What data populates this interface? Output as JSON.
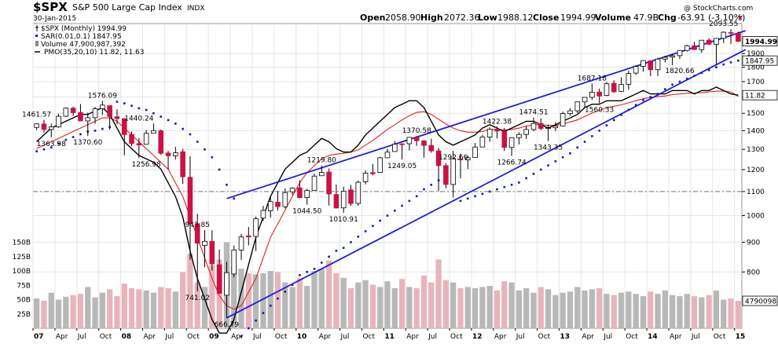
{
  "header": {
    "symbol": "$SPX",
    "name": "S&P 500 Large Cap Index",
    "exchange": "INDX",
    "date": "30-Jan-2015",
    "watermark": "@ StockCharts.com",
    "open_label": "Open",
    "open_value": "2058.90",
    "high_label": "High",
    "high_value": "2072.36",
    "low_label": "Low",
    "low_value": "1988.12",
    "close_label": "Close",
    "close_value": "1994.99",
    "volume_label": "Volume",
    "volume_value": "47.9B",
    "chg_label": "Chg",
    "chg_value": "-63.91 (-3.10%)"
  },
  "legend": [
    "$SPX (Monthly) 1994.99",
    "SAR(0.01,0.1) 1847.95",
    "Volume 47,900,987,392",
    "PMO(35,20,10) 11.82, 11.63"
  ],
  "colors": {
    "up": "#ffffff",
    "down": "#cc1144",
    "wick": "#000000",
    "sar": "#1a1aaa",
    "trend": "#1f1fd6",
    "pmo": "#000000",
    "pmo_signal": "#dd2222",
    "vol_up": "#b8b8b8",
    "vol_down": "#e8b4bc",
    "grid": "#e6e6e6",
    "dash": "#777777"
  },
  "chart_data": {
    "type": "candlestick",
    "interval": "monthly",
    "price_axis_ticks": [
      800,
      900,
      1000,
      1100,
      1200,
      1300,
      1400,
      1500,
      1600,
      1700,
      1800,
      1900
    ],
    "price_axis_labels": [
      "800",
      "900",
      "1000",
      "1100",
      "1200",
      "1300",
      "1400",
      "1500",
      "1600",
      "1700",
      "1800",
      "1900"
    ],
    "volume_axis_ticks": [
      25,
      50,
      75,
      100,
      125,
      150
    ],
    "volume_axis_labels": [
      "25B",
      "50B",
      "75B",
      "100B",
      "125B",
      "150B"
    ],
    "x_labels": [
      "07",
      "Apr",
      "Jul",
      "Oct",
      "08",
      "Apr",
      "Jul",
      "Oct",
      "09",
      "Apr",
      "Jul",
      "Oct",
      "10",
      "Apr",
      "Jul",
      "Oct",
      "11",
      "Apr",
      "Jul",
      "Oct",
      "12",
      "Apr",
      "Jul",
      "Oct",
      "13",
      "Apr",
      "Jul",
      "Oct",
      "14",
      "Apr",
      "Jul",
      "Oct",
      "15"
    ],
    "x_label_month_index": [
      0,
      3,
      6,
      9,
      12,
      15,
      18,
      21,
      24,
      27,
      30,
      33,
      36,
      39,
      42,
      45,
      48,
      51,
      54,
      57,
      60,
      63,
      66,
      69,
      72,
      75,
      78,
      81,
      84,
      87,
      90,
      93,
      96
    ],
    "reference_line": 1100,
    "last_close": 1994.99,
    "right_axis_tags": [
      {
        "label": "11.82",
        "value": 11.82,
        "series": "pmo"
      },
      {
        "label": "1994.99",
        "value": 1994.99,
        "series": "price"
      },
      {
        "label": "1847.95",
        "value": 1847.95,
        "series": "sar"
      },
      {
        "label": "4790098",
        "value": 47.9,
        "series": "volume"
      }
    ],
    "annotations": [
      {
        "text": "1461.57",
        "month": 0,
        "value": 1461.57,
        "pos": "above"
      },
      {
        "text": "1363.98",
        "month": 2,
        "value": 1363.98,
        "pos": "below"
      },
      {
        "text": "1370.60",
        "month": 7,
        "value": 1370.6,
        "pos": "below"
      },
      {
        "text": "1576.09",
        "month": 9,
        "value": 1576.09,
        "pos": "above"
      },
      {
        "text": "1440.24",
        "month": 14,
        "value": 1440.24,
        "pos": "above"
      },
      {
        "text": "1256.98",
        "month": 15,
        "value": 1256.98,
        "pos": "below"
      },
      {
        "text": "943.85",
        "month": 22,
        "value": 943.85,
        "pos": "above"
      },
      {
        "text": "741.02",
        "month": 22,
        "value": 741.02,
        "pos": "below"
      },
      {
        "text": "666.79",
        "month": 26,
        "value": 666.79,
        "pos": "below"
      },
      {
        "text": "1219.80",
        "month": 39,
        "value": 1219.8,
        "pos": "above"
      },
      {
        "text": "1044.50",
        "month": 37,
        "value": 1044.5,
        "pos": "below"
      },
      {
        "text": "1010.91",
        "month": 42,
        "value": 1010.91,
        "pos": "below"
      },
      {
        "text": "1370.58",
        "month": 52,
        "value": 1370.58,
        "pos": "above"
      },
      {
        "text": "1249.05",
        "month": 50,
        "value": 1249.05,
        "pos": "below"
      },
      {
        "text": "1292.66",
        "month": 57,
        "value": 1292.66,
        "pos": "below"
      },
      {
        "text": "1422.38",
        "month": 63,
        "value": 1422.38,
        "pos": "above"
      },
      {
        "text": "1266.74",
        "month": 65,
        "value": 1266.74,
        "pos": "below"
      },
      {
        "text": "1474.51",
        "month": 68,
        "value": 1474.51,
        "pos": "above"
      },
      {
        "text": "1343.35",
        "month": 70,
        "value": 1343.35,
        "pos": "below"
      },
      {
        "text": "1687.18",
        "month": 76,
        "value": 1687.18,
        "pos": "above"
      },
      {
        "text": "1560.33",
        "month": 77,
        "value": 1560.33,
        "pos": "below"
      },
      {
        "text": "1820.66",
        "month": 88,
        "value": 1820.66,
        "pos": "below"
      },
      {
        "text": "2093.55",
        "month": 94,
        "value": 2093.55,
        "pos": "above"
      }
    ],
    "trendlines": [
      {
        "from": {
          "month": 26,
          "value": 1070
        },
        "to": {
          "month": 97,
          "value": 2080
        }
      },
      {
        "from": {
          "month": 26,
          "value": 666.79
        },
        "to": {
          "month": 97,
          "value": 1930
        }
      }
    ],
    "ohlc": [
      [
        1418.03,
        1441.61,
        1403.97,
        1438.24
      ],
      [
        1437.9,
        1461.57,
        1389.42,
        1406.82
      ],
      [
        1406.8,
        1438.89,
        1363.98,
        1420.86
      ],
      [
        1420.83,
        1498.02,
        1416.37,
        1482.37
      ],
      [
        1482.37,
        1535.56,
        1476.7,
        1530.62
      ],
      [
        1530.62,
        1540.56,
        1484.18,
        1503.35
      ],
      [
        1504.66,
        1555.9,
        1454.25,
        1455.27
      ],
      [
        1455.18,
        1503.89,
        1370.6,
        1473.99
      ],
      [
        1473.96,
        1538.71,
        1439.76,
        1526.75
      ],
      [
        1527.29,
        1576.09,
        1489.56,
        1549.38
      ],
      [
        1545.79,
        1545.79,
        1406.1,
        1481.14
      ],
      [
        1479.63,
        1523.57,
        1435.65,
        1468.36
      ],
      [
        1467.97,
        1471.77,
        1270.05,
        1378.55
      ],
      [
        1378.6,
        1396.02,
        1316.75,
        1330.63
      ],
      [
        1330.45,
        1359.68,
        1256.98,
        1322.7
      ],
      [
        1326.41,
        1404.05,
        1324.35,
        1385.59
      ],
      [
        1385.97,
        1440.24,
        1384.71,
        1400.38
      ],
      [
        1399.62,
        1406.32,
        1272.0,
        1280.0
      ],
      [
        1281.37,
        1292.17,
        1200.44,
        1267.38
      ],
      [
        1267.38,
        1313.15,
        1248.64,
        1282.83
      ],
      [
        1287.83,
        1303.04,
        1133.5,
        1166.36
      ],
      [
        1164.17,
        1264.8,
        839.8,
        968.75
      ],
      [
        968.67,
        1007.51,
        741.02,
        896.24
      ],
      [
        888.61,
        943.85,
        815.69,
        903.25
      ],
      [
        902.99,
        943.85,
        804.3,
        825.88
      ],
      [
        823.09,
        875.01,
        734.52,
        735.09
      ],
      [
        729.57,
        832.98,
        666.79,
        797.87
      ],
      [
        793.59,
        888.7,
        783.32,
        872.81
      ],
      [
        872.74,
        930.17,
        839.42,
        919.14
      ],
      [
        923.26,
        956.23,
        888.86,
        919.32
      ],
      [
        920.82,
        996.68,
        869.32,
        987.48
      ],
      [
        990.22,
        1039.47,
        978.51,
        1020.62
      ],
      [
        1019.52,
        1080.15,
        991.97,
        1057.08
      ],
      [
        1054.91,
        1101.36,
        1019.95,
        1036.19
      ],
      [
        1036.18,
        1113.69,
        1029.38,
        1095.63
      ],
      [
        1098.89,
        1119.13,
        1085.89,
        1115.1
      ],
      [
        1116.56,
        1150.45,
        1071.59,
        1073.87
      ],
      [
        1073.89,
        1112.42,
        1044.5,
        1104.49
      ],
      [
        1105.36,
        1180.69,
        1105.36,
        1169.43
      ],
      [
        1171.23,
        1219.8,
        1170.69,
        1186.69
      ],
      [
        1188.58,
        1205.13,
        1040.78,
        1089.41
      ],
      [
        1087.3,
        1131.23,
        1028.33,
        1030.71
      ],
      [
        1031.1,
        1120.95,
        1010.91,
        1101.6
      ],
      [
        1107.53,
        1129.24,
        1039.7,
        1049.33
      ],
      [
        1049.72,
        1148.9,
        1039.7,
        1141.2
      ],
      [
        1143.49,
        1196.14,
        1131.87,
        1183.26
      ],
      [
        1185.71,
        1227.08,
        1173.0,
        1180.55
      ],
      [
        1186.6,
        1262.6,
        1186.6,
        1257.64
      ],
      [
        1257.62,
        1302.67,
        1257.62,
        1286.12
      ],
      [
        1289.14,
        1344.07,
        1289.14,
        1327.22
      ],
      [
        1328.64,
        1332.28,
        1249.05,
        1325.83
      ],
      [
        1329.48,
        1364.56,
        1294.7,
        1363.61
      ],
      [
        1365.21,
        1370.58,
        1318.51,
        1345.2
      ],
      [
        1345.2,
        1346.92,
        1258.07,
        1320.64
      ],
      [
        1320.64,
        1356.48,
        1282.86,
        1292.28
      ],
      [
        1292.59,
        1307.38,
        1101.54,
        1218.89
      ],
      [
        1219.12,
        1230.71,
        1114.22,
        1131.42
      ],
      [
        1131.21,
        1292.66,
        1074.77,
        1253.3
      ],
      [
        1251.0,
        1277.55,
        1158.66,
        1246.96
      ],
      [
        1246.91,
        1269.37,
        1202.37,
        1257.6
      ],
      [
        1258.86,
        1333.47,
        1258.86,
        1312.41
      ],
      [
        1312.45,
        1378.04,
        1312.45,
        1365.68
      ],
      [
        1365.2,
        1419.15,
        1340.03,
        1408.47
      ],
      [
        1408.47,
        1422.38,
        1357.38,
        1397.91
      ],
      [
        1397.86,
        1415.32,
        1291.98,
        1310.33
      ],
      [
        1309.87,
        1363.46,
        1266.74,
        1362.16
      ],
      [
        1362.33,
        1391.74,
        1325.41,
        1379.32
      ],
      [
        1379.32,
        1426.68,
        1354.65,
        1406.58
      ],
      [
        1406.54,
        1474.51,
        1396.56,
        1440.67
      ],
      [
        1440.9,
        1470.96,
        1403.28,
        1412.16
      ],
      [
        1412.2,
        1434.27,
        1343.35,
        1416.18
      ],
      [
        1416.18,
        1448.0,
        1398.11,
        1426.19
      ],
      [
        1426.19,
        1509.94,
        1426.19,
        1498.11
      ],
      [
        1498.11,
        1530.94,
        1485.01,
        1514.68
      ],
      [
        1514.68,
        1570.28,
        1501.48,
        1569.19
      ],
      [
        1569.18,
        1597.57,
        1536.03,
        1597.57
      ],
      [
        1597.55,
        1687.18,
        1581.28,
        1630.74
      ],
      [
        1631.71,
        1654.19,
        1560.33,
        1606.28
      ],
      [
        1609.78,
        1698.78,
        1604.57,
        1685.73
      ],
      [
        1689.42,
        1709.67,
        1627.47,
        1632.97
      ],
      [
        1635.95,
        1729.86,
        1633.41,
        1681.55
      ],
      [
        1682.41,
        1775.22,
        1646.47,
        1756.54
      ],
      [
        1758.7,
        1813.55,
        1746.2,
        1805.81
      ],
      [
        1806.55,
        1849.44,
        1767.99,
        1848.36
      ],
      [
        1845.86,
        1850.84,
        1737.92,
        1782.59
      ],
      [
        1782.68,
        1867.92,
        1737.92,
        1859.45
      ],
      [
        1859.16,
        1883.97,
        1834.44,
        1872.34
      ],
      [
        1873.96,
        1897.28,
        1814.36,
        1883.95
      ],
      [
        1884.39,
        1924.03,
        1859.79,
        1923.57
      ],
      [
        1923.87,
        1968.17,
        1915.98,
        1960.23
      ],
      [
        1960.23,
        1991.39,
        1930.67,
        1930.67
      ],
      [
        1929.8,
        2005.04,
        1904.78,
        2003.37
      ],
      [
        2004.07,
        2019.26,
        1964.04,
        1972.29
      ],
      [
        1971.44,
        2018.19,
        1820.66,
        2018.05
      ],
      [
        2018.21,
        2075.76,
        1981.75,
        2067.56
      ],
      [
        2065.78,
        2093.55,
        1972.56,
        2058.9
      ],
      [
        2058.9,
        2072.36,
        1988.12,
        1994.99
      ]
    ],
    "volume_billions": [
      52,
      48,
      62,
      50,
      55,
      58,
      60,
      72,
      54,
      62,
      68,
      56,
      78,
      70,
      68,
      66,
      62,
      72,
      70,
      64,
      98,
      130,
      80,
      72,
      110,
      120,
      150,
      108,
      104,
      96,
      94,
      96,
      100,
      98,
      80,
      72,
      88,
      74,
      100,
      104,
      118,
      96,
      88,
      70,
      80,
      84,
      76,
      72,
      82,
      70,
      86,
      72,
      70,
      92,
      80,
      120,
      84,
      80,
      70,
      72,
      70,
      72,
      74,
      66,
      82,
      80,
      66,
      70,
      62,
      72,
      68,
      58,
      62,
      64,
      72,
      66,
      68,
      70,
      60,
      58,
      62,
      64,
      60,
      56,
      64,
      60,
      66,
      58,
      56,
      60,
      56,
      54,
      58,
      66,
      50,
      52,
      47.9
    ],
    "sar": [
      1290,
      1300,
      1310,
      1330,
      1350,
      1365,
      1380,
      1395,
      1400,
      1410,
      1420,
      1570,
      1560,
      1545,
      1530,
      1520,
      1500,
      1480,
      1460,
      1440,
      1410,
      1380,
      1340,
      1300,
      1260,
      1200,
      1130,
      1070,
      620,
      640,
      660,
      680,
      700,
      720,
      740,
      760,
      790,
      800,
      810,
      830,
      850,
      870,
      880,
      900,
      920,
      940,
      960,
      980,
      1000,
      1020,
      1040,
      1060,
      1080,
      1110,
      1130,
      1150,
      1170,
      1200,
      1060,
      1070,
      1080,
      1090,
      1100,
      1110,
      1120,
      1130,
      1140,
      1160,
      1180,
      1200,
      1220,
      1240,
      1260,
      1280,
      1310,
      1340,
      1370,
      1400,
      1430,
      1460,
      1490,
      1520,
      1550,
      1580,
      1600,
      1620,
      1650,
      1680,
      1700,
      1720,
      1740,
      1760,
      1780,
      1800,
      1820,
      1835,
      1847.95
    ],
    "pmo": [
      5,
      6,
      7,
      7.5,
      8,
      8.5,
      9,
      9,
      9.5,
      10,
      9,
      7,
      5,
      4,
      3,
      2.5,
      2,
      1,
      -1,
      -3,
      -6,
      -11,
      -15,
      -18,
      -21,
      -23,
      -23,
      -21,
      -17,
      -13,
      -9,
      -6,
      -3,
      -1,
      1,
      2,
      3,
      3.5,
      4.5,
      5.5,
      5,
      4,
      3.5,
      3.5,
      4.5,
      6,
      7,
      8,
      9,
      10,
      10.5,
      11,
      11,
      10,
      8,
      6,
      5,
      4.5,
      5,
      5.5,
      6,
      7,
      7.5,
      7,
      6.5,
      7,
      7.5,
      8,
      8,
      7.5,
      7,
      7.5,
      8,
      8.5,
      9,
      10,
      10.5,
      10.5,
      11,
      11,
      11,
      11.5,
      12,
      12.5,
      12,
      12,
      12,
      12.5,
      12.5,
      12.5,
      12,
      12.5,
      12.5,
      13,
      12.5,
      12,
      11.82
    ],
    "pmo_signal": [
      4,
      4.5,
      5,
      5.5,
      6,
      6.5,
      7,
      7.5,
      8,
      8.5,
      8.5,
      8,
      7,
      6,
      5,
      4,
      3,
      2,
      1,
      -1,
      -3,
      -6,
      -9,
      -12,
      -15,
      -17.5,
      -19,
      -19.5,
      -19,
      -17,
      -15,
      -12,
      -9,
      -7,
      -5,
      -3,
      -1,
      0.5,
      1.5,
      2.5,
      3,
      3.2,
      3.3,
      3.5,
      3.8,
      4.5,
      5.2,
      6,
      6.8,
      7.5,
      8.2,
      8.8,
      9.3,
      9.4,
      9,
      8.3,
      7.6,
      7,
      6.6,
      6.4,
      6.4,
      6.5,
      6.8,
      6.8,
      6.7,
      6.8,
      7,
      7.3,
      7.5,
      7.5,
      7.4,
      7.4,
      7.6,
      7.9,
      8.2,
      8.7,
      9.2,
      9.6,
      10,
      10.2,
      10.4,
      10.7,
      11,
      11.3,
      11.5,
      11.6,
      11.7,
      11.9,
      12,
      12.1,
      12.1,
      12.2,
      12.3,
      12.4,
      12.4,
      12.3,
      11.63
    ]
  }
}
